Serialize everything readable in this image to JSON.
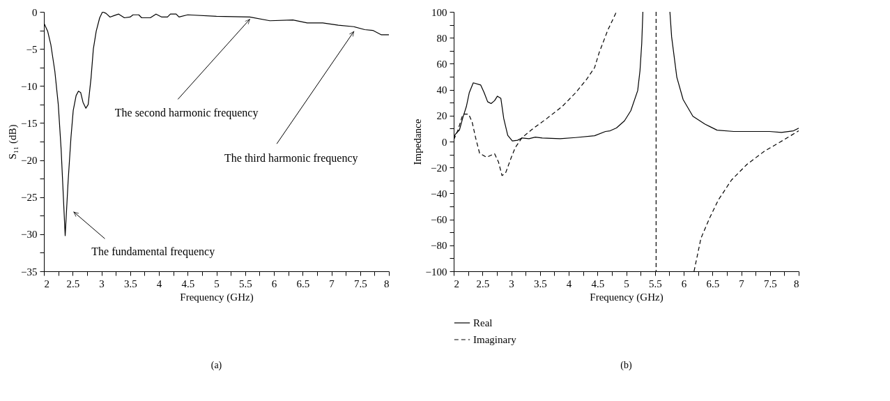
{
  "chart_data": [
    {
      "type": "line",
      "xlabel": "Frequency (GHz)",
      "ylabel": "S₁₁ (dB)",
      "xlim": [
        2,
        8
      ],
      "xticks": [
        2,
        {
          "value": 2.25,
          "label": null
        },
        2.5,
        {
          "value": 2.75,
          "label": null
        },
        3,
        {
          "value": 3.25,
          "label": null
        },
        3.5,
        {
          "value": 3.75,
          "label": null
        },
        4,
        {
          "value": 4.25,
          "label": null
        },
        4.5,
        {
          "value": 4.75,
          "label": null
        },
        5,
        {
          "value": 5.25,
          "label": null
        },
        5.5,
        {
          "value": 5.75,
          "label": null
        },
        6,
        {
          "value": 6.25,
          "label": null
        },
        6.5,
        {
          "value": 6.75,
          "label": null
        },
        7,
        {
          "value": 7.25,
          "label": null
        },
        7.5,
        {
          "value": 7.75,
          "label": null
        },
        8
      ],
      "ylim": [
        -35,
        0
      ],
      "yticks": [
        {
          "value": -35,
          "label": "−35"
        },
        {
          "value": -32.5,
          "label": null
        },
        {
          "value": -30,
          "label": "−30"
        },
        {
          "value": -27.5,
          "label": null
        },
        {
          "value": -25,
          "label": "−25"
        },
        {
          "value": -22.5,
          "label": null
        },
        {
          "value": -20,
          "label": "−20"
        },
        {
          "value": -17.5,
          "label": null
        },
        {
          "value": -15,
          "label": "−15"
        },
        {
          "value": -12.5,
          "label": null
        },
        {
          "value": -10,
          "label": "−10"
        },
        {
          "value": -7.5,
          "label": null
        },
        {
          "value": -5,
          "label": "−5"
        },
        {
          "value": -2.5,
          "label": null
        },
        0
      ],
      "grid": false,
      "line_style": "solid",
      "series": [
        {
          "color": "#000000",
          "x": [
            2,
            2.065,
            2.12,
            2.19,
            2.25,
            2.3,
            2.37,
            2.42,
            2.47,
            2.51,
            2.56,
            2.6,
            2.64,
            2.68,
            2.73,
            2.77,
            2.82,
            2.86,
            2.91,
            2.97,
            3.02,
            3.08,
            3.15,
            3.22,
            3.3,
            3.4,
            3.5,
            3.55,
            3.65,
            3.7,
            3.85,
            3.95,
            4.05,
            4.15,
            4.2,
            4.3,
            4.35,
            4.5,
            5.0,
            5.58,
            5.93,
            6.33,
            6.58,
            6.85,
            7.12,
            7.39,
            7.58,
            7.72,
            7.87,
            8
          ],
          "values": [
            -1.5,
            -2.6,
            -4.4,
            -8,
            -12.5,
            -18.6,
            -30.2,
            -23,
            -17,
            -13.3,
            -11.3,
            -10.7,
            -10.9,
            -12.2,
            -13,
            -12.5,
            -8.9,
            -5,
            -2.6,
            -0.8,
            0,
            -0.2,
            -0.7,
            -0.5,
            -0.3,
            -0.8,
            -0.7,
            -0.4,
            -0.4,
            -0.8,
            -0.8,
            -0.3,
            -0.7,
            -0.7,
            -0.3,
            -0.3,
            -0.7,
            -0.4,
            -0.6,
            -0.7,
            -1.2,
            -1.1,
            -1.5,
            -1.5,
            -1.8,
            -2,
            -2.4,
            -2.5,
            -3.1,
            -3.1
          ]
        }
      ],
      "annotations": [
        {
          "text": "The second harmonic frequency",
          "x": 5.58,
          "y": -0.7
        },
        {
          "text": "The third harmonic frequency",
          "x": 7.39,
          "y": -2
        },
        {
          "text": "The fundamental frequency",
          "x": 2.37,
          "y": -30.2
        },
        "(a)"
      ]
    },
    {
      "type": "line",
      "xlabel": "Frequency (GHz)",
      "ylabel": "Impedance",
      "xlim": [
        2,
        8
      ],
      "xticks": [
        2,
        {
          "value": 2.25,
          "label": null
        },
        2.5,
        {
          "value": 2.75,
          "label": null
        },
        3,
        {
          "value": 3.25,
          "label": null
        },
        3.5,
        {
          "value": 3.75,
          "label": null
        },
        4,
        {
          "value": 4.25,
          "label": null
        },
        4.5,
        {
          "value": 4.75,
          "label": null
        },
        5,
        {
          "value": 5.25,
          "label": null
        },
        5.5,
        {
          "value": 5.75,
          "label": null
        },
        6,
        {
          "value": 6.25,
          "label": null
        },
        6.5,
        {
          "value": 6.75,
          "label": null
        },
        7,
        {
          "value": 7.25,
          "label": null
        },
        7.5,
        {
          "value": 7.75,
          "label": null
        },
        8
      ],
      "ylim": [
        -100,
        100
      ],
      "yticks": [
        {
          "value": -100,
          "label": "−100"
        },
        {
          "value": -90,
          "label": null
        },
        {
          "value": -80,
          "label": "−80"
        },
        {
          "value": -70,
          "label": null
        },
        {
          "value": -60,
          "label": "−60"
        },
        {
          "value": -50,
          "label": null
        },
        {
          "value": -40,
          "label": "−40"
        },
        {
          "value": -30,
          "label": null
        },
        {
          "value": -20,
          "label": "−20"
        },
        {
          "value": -10,
          "label": null
        },
        0,
        {
          "value": 10,
          "label": null
        },
        20,
        {
          "value": 30,
          "label": null
        },
        40,
        {
          "value": 50,
          "label": null
        },
        60,
        {
          "value": 70,
          "label": null
        },
        80,
        {
          "value": 90,
          "label": null
        },
        100
      ],
      "grid": false,
      "legend": "bottom",
      "series": [
        {
          "name": "Real",
          "color": "#000000",
          "line_style": "solid",
          "x": [
            2,
            2.03,
            2.1,
            2.16,
            2.22,
            2.27,
            2.34,
            2.47,
            2.53,
            2.59,
            2.65,
            2.71,
            2.76,
            2.82,
            2.87,
            2.94,
            3.02,
            3.11,
            3.19,
            3.31,
            3.42,
            3.54,
            3.85,
            4.12,
            4.45,
            4.64,
            4.72,
            4.83,
            4.97,
            5.08,
            5.2,
            5.24,
            5.27,
            5.29,
            5.5,
            5.76,
            5.79,
            5.88,
            5.99,
            6.16,
            6.37,
            6.58,
            6.87,
            7.49,
            7.7,
            7.91,
            8
          ],
          "values": [
            3,
            5.7,
            9,
            18.6,
            27,
            37.6,
            45.3,
            43.6,
            37.6,
            30.7,
            29.3,
            31.5,
            35,
            33.3,
            17.8,
            4.8,
            0.5,
            1,
            2.8,
            2.2,
            3.4,
            2.8,
            2.2,
            3.1,
            4.5,
            7.8,
            8.3,
            10.5,
            16,
            23.8,
            39.3,
            54.8,
            75.5,
            100,
            null,
            100,
            80.7,
            49.7,
            32.4,
            19.5,
            13.4,
            8.8,
            7.8,
            7.8,
            7.1,
            8.3,
            10.3
          ]
        },
        {
          "name": "Imaginary",
          "color": "#000000",
          "line_style": "dashed",
          "x": [
            2,
            2.07,
            2.16,
            2.26,
            2.32,
            2.38,
            2.45,
            2.57,
            2.71,
            2.78,
            2.84,
            2.9,
            3.0,
            3.07,
            3.19,
            3.38,
            3.62,
            3.89,
            4.12,
            4.31,
            4.45,
            4.53,
            4.68,
            4.83,
            5.5,
            6.18,
            6.3,
            6.45,
            6.6,
            6.83,
            7.1,
            7.41,
            7.68,
            8
          ],
          "values": [
            1.4,
            8.3,
            21.2,
            21.2,
            15.2,
            3.1,
            -9,
            -12.1,
            -9.3,
            -15.9,
            -26.2,
            -24.5,
            -12.4,
            -4.7,
            3.1,
            10,
            17.8,
            27.2,
            37.6,
            47.9,
            57,
            68.6,
            85.9,
            100,
            null,
            -100,
            -74.5,
            -59,
            -45.2,
            -29.7,
            -17.6,
            -7.2,
            -0.3,
            8.3
          ]
        }
      ],
      "ref_lines": [
        {
          "axis": "x",
          "value": 5.52,
          "color": "#000000",
          "line_style": "dashed"
        }
      ],
      "annotations": [
        "(b)"
      ]
    }
  ]
}
